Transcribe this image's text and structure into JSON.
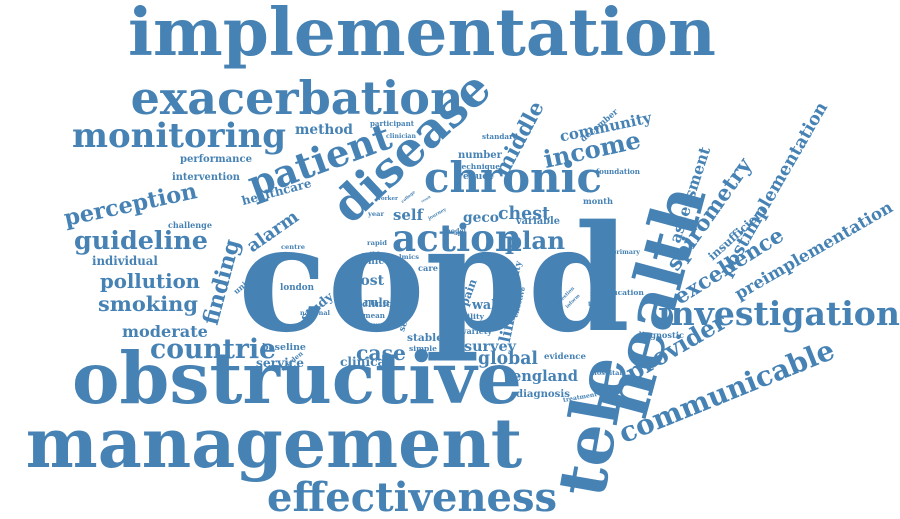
{
  "color": "#4682b4",
  "words": [
    {
      "id": "implementation",
      "text": "implementation"
    },
    {
      "id": "exacerbation",
      "text": "exacerbation"
    },
    {
      "id": "disease",
      "text": "disease"
    },
    {
      "id": "monitoring",
      "text": "monitoring"
    },
    {
      "id": "patient",
      "text": "patient"
    },
    {
      "id": "chronic",
      "text": "chronic"
    },
    {
      "id": "perception",
      "text": "perception"
    },
    {
      "id": "guideline",
      "text": "guideline"
    },
    {
      "id": "copd",
      "text": "copd"
    },
    {
      "id": "health",
      "text": "health"
    },
    {
      "id": "obstructive",
      "text": "obstructive"
    },
    {
      "id": "management",
      "text": "management"
    },
    {
      "id": "effectiveness",
      "text": "effectiveness"
    },
    {
      "id": "communicable",
      "text": "communicable"
    },
    {
      "id": "investigation",
      "text": "investigation"
    },
    {
      "id": "tele",
      "text": "tele"
    },
    {
      "id": "income",
      "text": "income"
    },
    {
      "id": "middle",
      "text": "middle"
    },
    {
      "id": "community",
      "text": "community"
    },
    {
      "id": "action",
      "text": "action"
    },
    {
      "id": "plan",
      "text": "plan"
    },
    {
      "id": "countrie",
      "text": "countrie"
    },
    {
      "id": "pollution",
      "text": "pollution"
    },
    {
      "id": "smoking",
      "text": "smoking"
    },
    {
      "id": "alarm",
      "text": "alarm"
    },
    {
      "id": "finding",
      "text": "finding"
    },
    {
      "id": "spirometry",
      "text": "spirometry"
    },
    {
      "id": "excellence",
      "text": "excellence"
    },
    {
      "id": "provider",
      "text": "provider"
    },
    {
      "id": "postimplementation",
      "text": "postimplementation"
    },
    {
      "id": "preimplementation",
      "text": "preimplementation"
    },
    {
      "id": "assessment",
      "text": "assessment"
    },
    {
      "id": "insufficient",
      "text": "insufficient"
    },
    {
      "id": "method",
      "text": "method"
    },
    {
      "id": "moderate",
      "text": "moderate"
    },
    {
      "id": "case",
      "text": "case"
    },
    {
      "id": "global",
      "text": "global"
    },
    {
      "id": "england",
      "text": "england"
    },
    {
      "id": "diagnosis",
      "text": "diagnosis"
    },
    {
      "id": "chest",
      "text": "chest"
    },
    {
      "id": "self",
      "text": "self"
    },
    {
      "id": "geco",
      "text": "geco"
    },
    {
      "id": "survey",
      "text": "survey"
    },
    {
      "id": "limit",
      "text": "limit"
    },
    {
      "id": "healthcare",
      "text": "healthcare"
    },
    {
      "id": "individual",
      "text": "individual"
    },
    {
      "id": "performance",
      "text": "performance"
    },
    {
      "id": "intervention",
      "text": "intervention"
    },
    {
      "id": "challenge",
      "text": "challenge"
    },
    {
      "id": "number",
      "text": "number"
    },
    {
      "id": "technique",
      "text": "technique"
    },
    {
      "id": "reduce",
      "text": "reduce"
    },
    {
      "id": "standard",
      "text": "standard"
    },
    {
      "id": "participant",
      "text": "participant"
    },
    {
      "id": "clinician",
      "text": "clinician"
    },
    {
      "id": "december",
      "text": "december"
    },
    {
      "id": "month",
      "text": "month"
    },
    {
      "id": "foundation",
      "text": "foundation"
    },
    {
      "id": "variable",
      "text": "variable"
    },
    {
      "id": "primary",
      "text": "primary"
    },
    {
      "id": "education",
      "text": "education"
    },
    {
      "id": "diagnostic",
      "text": "diagnostic"
    },
    {
      "id": "hospital",
      "text": "hospital"
    },
    {
      "id": "treatment",
      "text": "treatment"
    },
    {
      "id": "evidence",
      "text": "evidence"
    },
    {
      "id": "variety",
      "text": "variety"
    },
    {
      "id": "london",
      "text": "london"
    },
    {
      "id": "study",
      "text": "study"
    },
    {
      "id": "cost",
      "text": "cost"
    },
    {
      "id": "rule",
      "text": "rule"
    },
    {
      "id": "setting",
      "text": "setting"
    },
    {
      "id": "pain",
      "text": "pain"
    },
    {
      "id": "wale",
      "text": "wale"
    },
    {
      "id": "clinical",
      "text": "clinical"
    },
    {
      "id": "service",
      "text": "service"
    },
    {
      "id": "baseline",
      "text": "baseline"
    },
    {
      "id": "burden",
      "text": "burden"
    },
    {
      "id": "centre",
      "text": "centre"
    },
    {
      "id": "university",
      "text": "university"
    },
    {
      "id": "national",
      "text": "national"
    },
    {
      "id": "stable",
      "text": "stable"
    },
    {
      "id": "simple",
      "text": "simple"
    },
    {
      "id": "rapid",
      "text": "rapid"
    },
    {
      "id": "lmics",
      "text": "lmics"
    },
    {
      "id": "care",
      "text": "care"
    },
    {
      "id": "nice",
      "text": "nice"
    },
    {
      "id": "clinic",
      "text": "clinic"
    },
    {
      "id": "mean",
      "text": "mean"
    },
    {
      "id": "group",
      "text": "group"
    },
    {
      "id": "quality",
      "text": "quality"
    },
    {
      "id": "effective",
      "text": "effective"
    },
    {
      "id": "question",
      "text": "question"
    },
    {
      "id": "inform",
      "text": "inform"
    },
    {
      "id": "worker",
      "text": "worker"
    },
    {
      "id": "journey",
      "text": "journey"
    },
    {
      "id": "limited",
      "text": "limited"
    },
    {
      "id": "model",
      "text": "model"
    },
    {
      "id": "mild",
      "text": "mild"
    },
    {
      "id": "acute",
      "text": "acute"
    },
    {
      "id": "utility",
      "text": "utility"
    },
    {
      "id": "college",
      "text": "college"
    },
    {
      "id": "result",
      "text": "result"
    },
    {
      "id": "role",
      "text": "role"
    },
    {
      "id": "tool",
      "text": "tool"
    },
    {
      "id": "app",
      "text": "app"
    },
    {
      "id": "year",
      "text": "year"
    }
  ]
}
